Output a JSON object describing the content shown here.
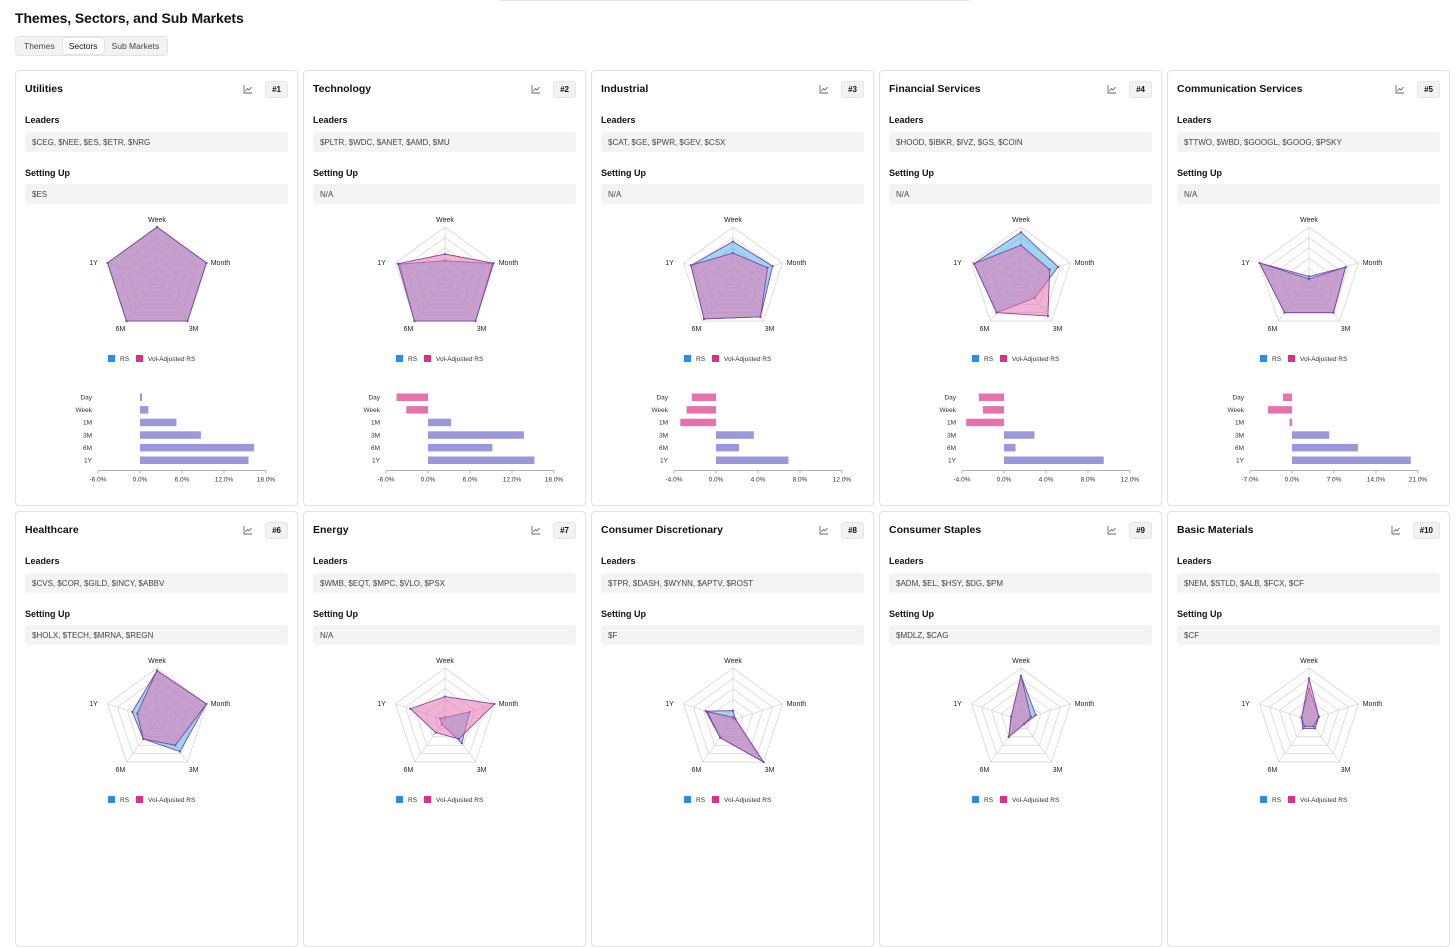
{
  "page": {
    "title": "Themes, Sectors, and Sub Markets",
    "tabs": [
      {
        "label": "Themes",
        "active": false
      },
      {
        "label": "Sectors",
        "active": true
      },
      {
        "label": "Sub Markets",
        "active": false
      }
    ]
  },
  "labels": {
    "leaders": "Leaders",
    "setting_up": "Setting Up",
    "legend_rs": "RS",
    "legend_vol": "Vol-Adjusted RS",
    "radar_axes": [
      "Week",
      "Month",
      "3M",
      "6M",
      "1Y"
    ],
    "bar_periods": [
      "Day",
      "Week",
      "1M",
      "3M",
      "6M",
      "1Y"
    ],
    "chart_icon": "line-chart-icon"
  },
  "colors": {
    "rs_fill": "#4eb3e8",
    "rs_legend": "#2a8fd8",
    "vol_fill": "#e872b0",
    "vol_legend": "#d63384",
    "overlap_stroke": "#7a4aa0",
    "bar_positive": "#9a98d8",
    "bar_negative": "#e872b0",
    "grid": "#d8d8d8"
  },
  "sectors": [
    {
      "name": "Utilities",
      "rank": "#1",
      "leaders": "$CEG, $NEE, $ES, $ETR, $NRG",
      "setting_up": "$ES",
      "chart_data": {
        "type": "radar",
        "axes": [
          "Week",
          "Month",
          "3M",
          "6M",
          "1Y"
        ],
        "series": [
          {
            "name": "RS",
            "values": [
              100,
              100,
              100,
              100,
              100
            ]
          },
          {
            "name": "Vol-Adjusted RS",
            "values": [
              100,
              100,
              100,
              100,
              100
            ]
          }
        ],
        "bars": {
          "type": "bar",
          "orientation": "horizontal",
          "categories": [
            "Day",
            "Week",
            "1M",
            "3M",
            "6M",
            "1Y"
          ],
          "values": [
            0.3,
            1.2,
            5.2,
            8.7,
            16.3,
            15.5
          ],
          "ticks": [
            "-6.0%",
            "0.0%",
            "6.0%",
            "12.0%",
            "18.0%"
          ],
          "xlim": [
            -6,
            18
          ]
        }
      }
    },
    {
      "name": "Technology",
      "rank": "#2",
      "leaders": "$PLTR, $WDC, $ANET, $AMD, $MU",
      "setting_up": "N/A",
      "chart_data": {
        "type": "radar",
        "axes": [
          "Week",
          "Month",
          "3M",
          "6M",
          "1Y"
        ],
        "series": [
          {
            "name": "RS",
            "values": [
              35,
              96,
              100,
              100,
              92
            ]
          },
          {
            "name": "Vol-Adjusted RS",
            "values": [
              48,
              98,
              100,
              100,
              95
            ]
          }
        ],
        "bars": {
          "type": "bar",
          "orientation": "horizontal",
          "categories": [
            "Day",
            "Week",
            "1M",
            "3M",
            "6M",
            "1Y"
          ],
          "values": [
            -4.5,
            -3.1,
            3.3,
            13.7,
            9.2,
            15.2
          ],
          "ticks": [
            "-6.0%",
            "0.0%",
            "6.0%",
            "12.0%",
            "18.0%"
          ],
          "xlim": [
            -6,
            18
          ]
        }
      }
    },
    {
      "name": "Industrial",
      "rank": "#3",
      "leaders": "$CAT, $GE, $PWR, $GEV, $CSX",
      "setting_up": "N/A",
      "chart_data": {
        "type": "radar",
        "axes": [
          "Week",
          "Month",
          "3M",
          "6M",
          "1Y"
        ],
        "series": [
          {
            "name": "RS",
            "values": [
              72,
              80,
              90,
              95,
              85
            ]
          },
          {
            "name": "Vol-Adjusted RS",
            "values": [
              50,
              70,
              90,
              95,
              85
            ]
          }
        ],
        "bars": {
          "type": "bar",
          "orientation": "horizontal",
          "categories": [
            "Day",
            "Week",
            "1M",
            "3M",
            "6M",
            "1Y"
          ],
          "values": [
            -2.3,
            -2.8,
            -3.4,
            3.6,
            2.2,
            6.9
          ],
          "ticks": [
            "-4.0%",
            "0.0%",
            "4.0%",
            "8.0%",
            "12.0%"
          ],
          "xlim": [
            -4,
            12
          ]
        }
      }
    },
    {
      "name": "Financial Services",
      "rank": "#4",
      "leaders": "$HOOD, $IBKR, $IVZ, $GS, $COIN",
      "setting_up": "N/A",
      "chart_data": {
        "type": "radar",
        "axes": [
          "Week",
          "Month",
          "3M",
          "6M",
          "1Y"
        ],
        "series": [
          {
            "name": "RS",
            "values": [
              90,
              75,
              45,
              80,
              95
            ]
          },
          {
            "name": "Vol-Adjusted RS",
            "values": [
              65,
              58,
              88,
              80,
              95
            ]
          }
        ],
        "bars": {
          "type": "bar",
          "orientation": "horizontal",
          "categories": [
            "Day",
            "Week",
            "1M",
            "3M",
            "6M",
            "1Y"
          ],
          "values": [
            -2.4,
            -2.0,
            -3.6,
            2.9,
            1.1,
            9.5
          ],
          "ticks": [
            "-4.0%",
            "0.0%",
            "4.0%",
            "8.0%",
            "12.0%"
          ],
          "xlim": [
            -4,
            12
          ]
        }
      }
    },
    {
      "name": "Communication Services",
      "rank": "#5",
      "leaders": "$TTWO, $WBD, $GOOGL, $GOOG, $PSKY",
      "setting_up": "N/A",
      "chart_data": {
        "type": "radar",
        "axes": [
          "Week",
          "Month",
          "3M",
          "6M",
          "1Y"
        ],
        "series": [
          {
            "name": "RS",
            "values": [
              5,
              74,
              80,
              80,
              100
            ]
          },
          {
            "name": "Vol-Adjusted RS",
            "values": [
              0,
              74,
              80,
              80,
              100
            ]
          }
        ],
        "bars": {
          "type": "bar",
          "orientation": "horizontal",
          "categories": [
            "Day",
            "Week",
            "1M",
            "3M",
            "6M",
            "1Y"
          ],
          "values": [
            -1.5,
            -4.0,
            -0.4,
            6.2,
            11.0,
            19.8
          ],
          "ticks": [
            "-7.0%",
            "0.0%",
            "7.0%",
            "14.0%",
            "21.0%"
          ],
          "xlim": [
            -7,
            21
          ]
        }
      }
    },
    {
      "name": "Healthcare",
      "rank": "#6",
      "leaders": "$CVS, $COR, $GILD, $INCY, $ABBV",
      "setting_up": "$HOLX, $TECH, $MRNA, $REGN",
      "chart_data": {
        "type": "radar",
        "axes": [
          "Week",
          "Month",
          "3M",
          "6M",
          "1Y"
        ],
        "series": [
          {
            "name": "RS",
            "values": [
              95,
              100,
              75,
              45,
              50
            ]
          },
          {
            "name": "Vol-Adjusted RS",
            "values": [
              95,
              100,
              60,
              45,
              40
            ]
          }
        ]
      }
    },
    {
      "name": "Energy",
      "rank": "#7",
      "leaders": "$WMB, $EQT, $MPC, $VLO, $PSX",
      "setting_up": "N/A",
      "chart_data": {
        "type": "radar",
        "axes": [
          "Week",
          "Month",
          "3M",
          "6M",
          "1Y"
        ],
        "series": [
          {
            "name": "RS",
            "values": [
              5,
              50,
              55,
              10,
              10
            ]
          },
          {
            "name": "Vol-Adjusted RS",
            "values": [
              45,
              100,
              45,
              30,
              70
            ]
          }
        ]
      }
    },
    {
      "name": "Consumer Discretionary",
      "rank": "#8",
      "leaders": "$TPR, $DASH, $WYNN, $APTV, $ROST",
      "setting_up": "$F",
      "chart_data": {
        "type": "radar",
        "axes": [
          "Week",
          "Month",
          "3M",
          "6M",
          "1Y"
        ],
        "series": [
          {
            "name": "RS",
            "values": [
              18,
              5,
              100,
              42,
              55
            ]
          },
          {
            "name": "Vol-Adjusted RS",
            "values": [
              5,
              5,
              100,
              42,
              52
            ]
          }
        ]
      }
    },
    {
      "name": "Consumer Staples",
      "rank": "#9",
      "leaders": "$ADM, $EL, $HSY, $DG, $PM",
      "setting_up": "$MDLZ, $CAG",
      "chart_data": {
        "type": "radar",
        "axes": [
          "Week",
          "Month",
          "3M",
          "6M",
          "1Y"
        ],
        "series": [
          {
            "name": "RS",
            "values": [
              85,
              30,
              10,
              40,
              20
            ]
          },
          {
            "name": "Vol-Adjusted RS",
            "values": [
              85,
              20,
              10,
              40,
              20
            ]
          }
        ]
      }
    },
    {
      "name": "Basic Materials",
      "rank": "#10",
      "leaders": "$NEM, $STLD, $ALB, $FCX, $CF",
      "setting_up": "$CF",
      "chart_data": {
        "type": "radar",
        "axes": [
          "Week",
          "Month",
          "3M",
          "6M",
          "1Y"
        ],
        "series": [
          {
            "name": "RS",
            "values": [
              60,
              20,
              20,
              20,
              15
            ]
          },
          {
            "name": "Vol-Adjusted RS",
            "values": [
              80,
              20,
              15,
              15,
              15
            ]
          }
        ]
      }
    }
  ]
}
